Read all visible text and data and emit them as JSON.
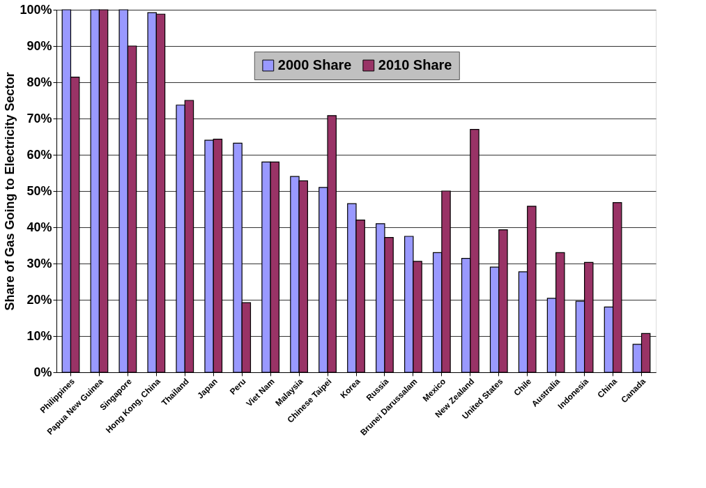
{
  "chart_data": {
    "type": "bar",
    "ylabel": "Share of Gas Going to Electricity Sector",
    "categories": [
      "Philippines",
      "Papua New Guinea",
      "Singapore",
      "Hong Kong, China",
      "Thailand",
      "Japan",
      "Peru",
      "Viet Nam",
      "Malaysia",
      "Chinese Taipei",
      "Korea",
      "Russia",
      "Brunei Darussalam",
      "Mexico",
      "New Zealand",
      "United States",
      "Chile",
      "Australia",
      "Indonesia",
      "China",
      "Canada"
    ],
    "series": [
      {
        "name": "2000 Share",
        "color": "#9999ff",
        "values": [
          100,
          100,
          100,
          99.2,
          73.7,
          64,
          63.2,
          58,
          54,
          51,
          46.5,
          41,
          37.5,
          33,
          31.4,
          29,
          27.7,
          20.4,
          19.6,
          18,
          7.7
        ]
      },
      {
        "name": "2010 Share",
        "color": "#993366",
        "values": [
          81.4,
          100,
          90,
          98.8,
          75,
          64.3,
          19.2,
          58,
          52.8,
          70.8,
          42,
          37.2,
          30.6,
          50,
          67,
          39.3,
          45.8,
          33,
          30.3,
          46.8,
          10.7
        ]
      }
    ],
    "ylim": [
      0,
      100
    ],
    "yticks": [
      {
        "value": 0,
        "label": "0%"
      },
      {
        "value": 10,
        "label": "10%"
      },
      {
        "value": 20,
        "label": "20%"
      },
      {
        "value": 30,
        "label": "30%"
      },
      {
        "value": 40,
        "label": "40%"
      },
      {
        "value": 50,
        "label": "50%"
      },
      {
        "value": 60,
        "label": "60%"
      },
      {
        "value": 70,
        "label": "70%"
      },
      {
        "value": 80,
        "label": "80%"
      },
      {
        "value": 90,
        "label": "90%"
      },
      {
        "value": 100,
        "label": "100%"
      }
    ],
    "grid": "y",
    "legend": "top"
  }
}
